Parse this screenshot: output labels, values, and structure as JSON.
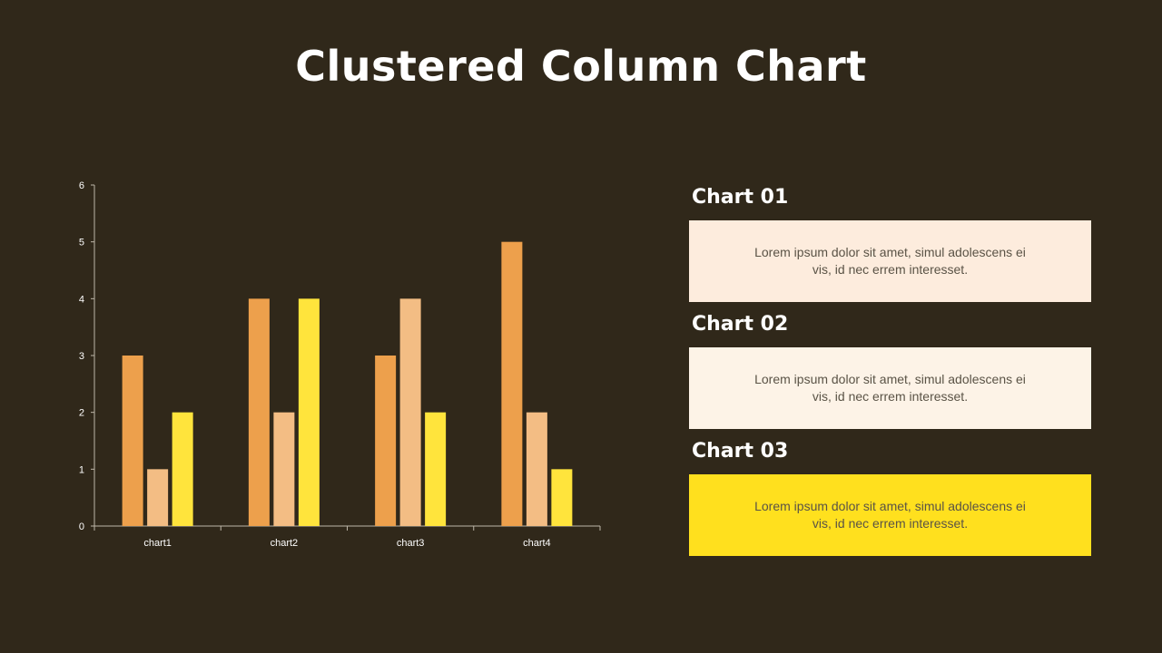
{
  "page": {
    "title": "Clustered Column Chart"
  },
  "chart_data": {
    "type": "bar",
    "title": "",
    "xlabel": "",
    "ylabel": "",
    "ylim": [
      0,
      6
    ],
    "yticks": [
      0,
      1,
      2,
      3,
      4,
      5,
      6
    ],
    "grid": false,
    "legend": "none",
    "categories": [
      "chart1",
      "chart2",
      "chart3",
      "chart4"
    ],
    "series": [
      {
        "values": [
          3,
          4,
          3,
          5
        ],
        "color": "#eda04c"
      },
      {
        "values": [
          1,
          2,
          4,
          2
        ],
        "color": "#f3bd84"
      },
      {
        "values": [
          2,
          4,
          2,
          1
        ],
        "color": "#ffe43c"
      }
    ]
  },
  "cards": [
    {
      "title": "Chart 01",
      "text": "Lorem ipsum dolor sit amet, simul adolescens ei vis, id nec errem interesset.",
      "bg": "#fdecdd"
    },
    {
      "title": "Chart 02",
      "text": "Lorem ipsum dolor sit amet, simul adolescens ei vis, id nec errem interesset.",
      "bg": "#fdf3e7"
    },
    {
      "title": "Chart 03",
      "text": "Lorem ipsum dolor sit amet, simul adolescens ei vis, id nec errem interesset.",
      "bg": "#ffe01e"
    }
  ]
}
